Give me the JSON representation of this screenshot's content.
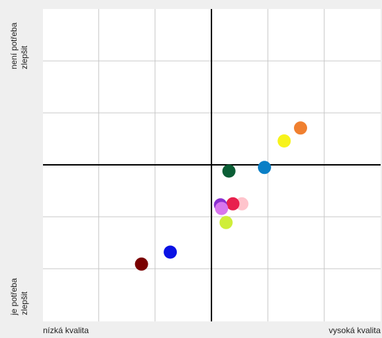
{
  "chart_data": {
    "type": "scatter",
    "title": "",
    "labels": {
      "y_top": [
        "není potřeba",
        "zlepšit"
      ],
      "y_bottom": [
        "je potřeba",
        "zlepšit"
      ],
      "x_left": "nízká kvalita",
      "x_right": "vysoká kvalita"
    },
    "xlim": [
      -3,
      3
    ],
    "ylim": [
      -3,
      3
    ],
    "grid": true,
    "points": [
      {
        "x": 1.58,
        "y": 0.71,
        "color": "#f08030"
      },
      {
        "x": 1.29,
        "y": 0.46,
        "color": "#f7f31b"
      },
      {
        "x": 0.94,
        "y": -0.05,
        "color": "#0a7fc6"
      },
      {
        "x": 0.31,
        "y": -0.12,
        "color": "#0b5e36"
      },
      {
        "x": 0.54,
        "y": -0.75,
        "color": "#ffc4cc"
      },
      {
        "x": 0.38,
        "y": -0.75,
        "color": "#e8204d"
      },
      {
        "x": 0.16,
        "y": -0.77,
        "color": "#8a2fd0"
      },
      {
        "x": 0.18,
        "y": -0.84,
        "color": "#d876ee"
      },
      {
        "x": 0.26,
        "y": -1.11,
        "color": "#cfee3a"
      },
      {
        "x": -0.73,
        "y": -1.68,
        "color": "#0a12e4"
      },
      {
        "x": -1.24,
        "y": -1.91,
        "color": "#7a0000"
      }
    ]
  }
}
